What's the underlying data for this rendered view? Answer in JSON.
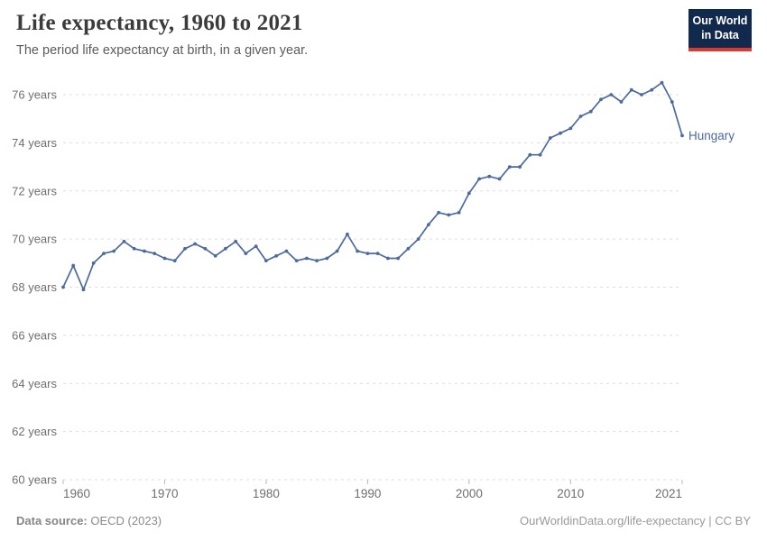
{
  "header": {
    "title": "Life expectancy, 1960 to 2021",
    "subtitle": "The period life expectancy at birth, in a given year.",
    "logo": {
      "line1": "Our World",
      "line2": "in Data"
    }
  },
  "chart_data": {
    "type": "line",
    "title": "Life expectancy, 1960 to 2021",
    "xlabel": "",
    "ylabel": "",
    "xlim": [
      1960,
      2021
    ],
    "ylim": [
      60,
      76
    ],
    "grid": "horizontal-dashed",
    "legend_position": "end-of-line-label",
    "x_ticks": [
      1960,
      1970,
      1980,
      1990,
      2000,
      2010,
      2021
    ],
    "y_ticks": [
      60,
      62,
      64,
      66,
      68,
      70,
      72,
      74,
      76
    ],
    "y_tick_suffix": " years",
    "x": [
      1960,
      1961,
      1962,
      1963,
      1964,
      1965,
      1966,
      1967,
      1968,
      1969,
      1970,
      1971,
      1972,
      1973,
      1974,
      1975,
      1976,
      1977,
      1978,
      1979,
      1980,
      1981,
      1982,
      1983,
      1984,
      1985,
      1986,
      1987,
      1988,
      1989,
      1990,
      1991,
      1992,
      1993,
      1994,
      1995,
      1996,
      1997,
      1998,
      1999,
      2000,
      2001,
      2002,
      2003,
      2004,
      2005,
      2006,
      2007,
      2008,
      2009,
      2010,
      2011,
      2012,
      2013,
      2014,
      2015,
      2016,
      2017,
      2018,
      2019,
      2020,
      2021
    ],
    "series": [
      {
        "name": "Hungary",
        "color": "#4C6A9C",
        "values": [
          68.0,
          68.9,
          67.9,
          69.0,
          69.4,
          69.5,
          69.9,
          69.6,
          69.5,
          69.4,
          69.2,
          69.1,
          69.6,
          69.8,
          69.6,
          69.3,
          69.6,
          69.9,
          69.4,
          69.7,
          69.1,
          69.3,
          69.5,
          69.1,
          69.2,
          69.1,
          69.2,
          69.5,
          70.2,
          69.5,
          69.4,
          69.4,
          69.2,
          69.2,
          69.6,
          70.0,
          70.6,
          71.1,
          71.0,
          71.1,
          71.9,
          72.5,
          72.6,
          72.5,
          73.0,
          73.0,
          73.5,
          73.5,
          74.2,
          74.4,
          74.6,
          75.1,
          75.3,
          75.8,
          76.0,
          75.7,
          76.2,
          76.0,
          76.2,
          76.5,
          75.7,
          74.3
        ]
      }
    ]
  },
  "footer": {
    "datasource_label": "Data source:",
    "datasource_value": "OECD (2023)",
    "credit": "OurWorldinData.org/life-expectancy | CC BY"
  },
  "colors": {
    "line": "#4C6A9C",
    "entity_label": "#4C6A9C",
    "grid": "#dedede",
    "tick": "#b8b8b8",
    "axis_text": "#6e6e6e",
    "logo_bg": "#12294e",
    "logo_red": "#dc3b2b"
  }
}
